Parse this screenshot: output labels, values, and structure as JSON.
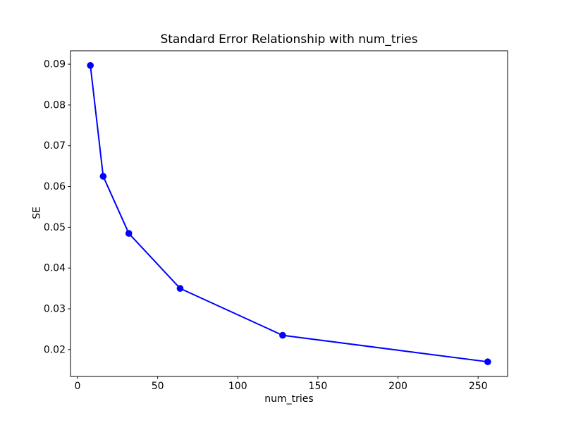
{
  "figure": {
    "background": "#ffffff",
    "axes_color": "#000000",
    "text_color": "#000000"
  },
  "chart_data": {
    "type": "line",
    "title": "Standard Error Relationship with num_tries",
    "xlabel": "num_tries",
    "ylabel": "SE",
    "x": [
      8,
      16,
      32,
      64,
      128,
      256
    ],
    "y": [
      0.0897,
      0.0625,
      0.0485,
      0.035,
      0.0235,
      0.017
    ],
    "xlim": [
      -4.4,
      268.4
    ],
    "ylim": [
      0.0134,
      0.0933
    ],
    "xticks": [
      0,
      50,
      100,
      150,
      200,
      250
    ],
    "yticks": [
      0.02,
      0.03,
      0.04,
      0.05,
      0.06,
      0.07,
      0.08,
      0.09
    ],
    "ytick_decimals": 2,
    "line_color": "#0000ff",
    "marker": "circle",
    "marker_color": "#0000ff",
    "grid": false,
    "legend": null
  }
}
